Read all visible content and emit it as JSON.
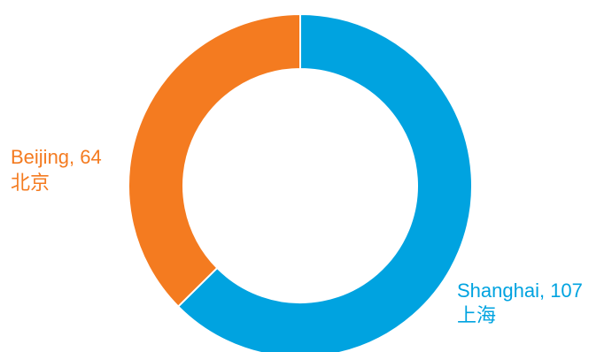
{
  "chart_data": {
    "type": "pie",
    "donut": true,
    "categories": [
      "Shanghai",
      "Beijing"
    ],
    "values": [
      107,
      64
    ],
    "labels": [
      {
        "text": "Shanghai, 107",
        "subtext": "上海"
      },
      {
        "text": "Beijing, 64",
        "subtext": "北京"
      }
    ],
    "colors": [
      "#00A3E0",
      "#F47B20"
    ],
    "title": "",
    "legend": "none"
  }
}
